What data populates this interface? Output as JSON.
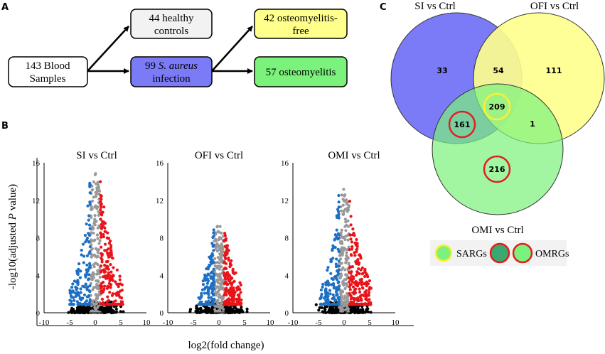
{
  "panel_labels": {
    "a": "A",
    "b": "B",
    "c": "C"
  },
  "flow": {
    "blood": {
      "line1": "143 Blood",
      "line2": "Samples"
    },
    "healthy": {
      "line1": "44 healthy",
      "line2": "controls"
    },
    "infection": {
      "line1_pre": "99 ",
      "line1_italic": "S. aureus",
      "line2": "infection"
    },
    "of_free": {
      "line1": "42 osteomyelitis-",
      "line2": "free"
    },
    "osteo": {
      "line1": "57 osteomyelitis"
    }
  },
  "colors": {
    "flow_healthy": "#f2f2f2",
    "flow_infection": "#7b7bf7",
    "flow_free": "#ffff8c",
    "flow_osteo": "#7bf27b",
    "venn_si": "#7b7bf7",
    "venn_ofi": "#ffff8c",
    "venn_omi": "#7bf27b",
    "sargs_ring": "#ffee33",
    "omrgs_ring": "#e02020",
    "up": "#e8141a",
    "down": "#1c6fc4",
    "ns": "#999999",
    "base": "#000000"
  },
  "volcano": {
    "ylabel_pre": "-log10(adjusted ",
    "ylabel_italic": "P",
    "ylabel_post": " value)",
    "xlabel": "log2(fold change)",
    "y_ticks": [
      "0",
      "4",
      "8",
      "12",
      "16"
    ],
    "x_ticks": [
      "-10",
      "-5",
      "0",
      "5",
      "10"
    ],
    "panels": [
      {
        "title": "SI vs Ctrl",
        "max_y": 15.3,
        "spread": 1.0
      },
      {
        "title": "OFI vs Ctrl",
        "max_y": 9.7,
        "spread": 0.75
      },
      {
        "title": "OMI vs Ctrl",
        "max_y": 13.5,
        "spread": 0.95
      }
    ]
  },
  "chart_data": {
    "type": "venn",
    "title": "",
    "sets": [
      {
        "name": "SI vs Ctrl"
      },
      {
        "name": "OFI vs Ctrl"
      },
      {
        "name": "OMI vs Ctrl"
      }
    ],
    "regions": {
      "si_only": "33",
      "si_ofi": "54",
      "ofi_only": "111",
      "all_three": "209",
      "si_omi": "161",
      "ofi_omi": "1",
      "omi_only": "216"
    },
    "legend": {
      "sargs": "SARGs",
      "omrgs": "OMRGs"
    }
  }
}
